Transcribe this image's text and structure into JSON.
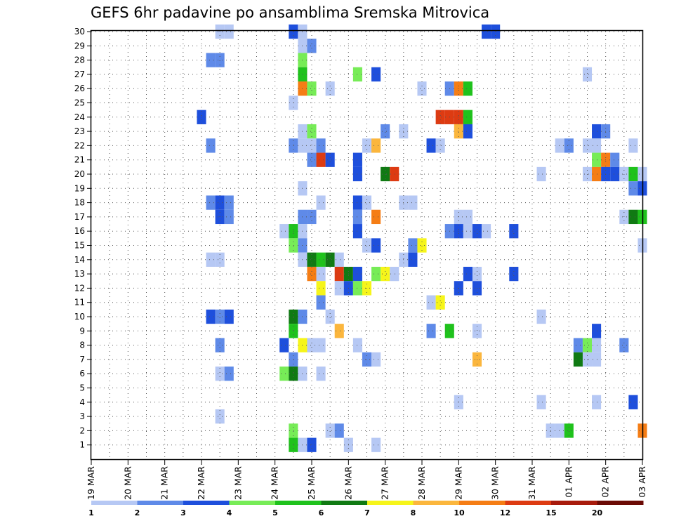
{
  "chart_data": {
    "type": "heatmap",
    "title": "GEFS 6hr padavine po ansamblima Sremska Mitrovica",
    "xlabel": "",
    "ylabel": "",
    "x_tick_labels": [
      "19 MAR",
      "20 MAR",
      "21 MAR",
      "22 MAR",
      "23 MAR",
      "24 MAR",
      "25 MAR",
      "26 MAR",
      "27 MAR",
      "28 MAR",
      "29 MAR",
      "30 MAR",
      "31 MAR",
      "01 APR",
      "02 APR",
      "03 APR"
    ],
    "x_range_days": [
      0,
      15
    ],
    "y_tick_labels": [
      "1",
      "2",
      "3",
      "4",
      "5",
      "6",
      "7",
      "8",
      "9",
      "10",
      "11",
      "12",
      "13",
      "14",
      "15",
      "16",
      "17",
      "18",
      "19",
      "20",
      "21",
      "22",
      "23",
      "24",
      "25",
      "26",
      "27",
      "28",
      "29",
      "30"
    ],
    "y_range": [
      0,
      30
    ],
    "grid": true,
    "colorbar": {
      "labels": [
        "1",
        "2",
        "3",
        "4",
        "5",
        "6",
        "7",
        "8",
        "10",
        "12",
        "15",
        "20"
      ],
      "colors": [
        "#b6c8f4",
        "#5f8ae8",
        "#1e4fdc",
        "#77ec57",
        "#1fc21c",
        "#107a13",
        "#f6f51a",
        "#fbb63d",
        "#f57d15",
        "#dd3b12",
        "#a81b0d",
        "#6b0a05"
      ]
    },
    "points_note": "x = days since 19 MAR 00Z (6-hour steps), y = ensemble member, c = precipitation class index into colorbar.colors",
    "points": [
      {
        "x": 3.5,
        "y": 30,
        "c": 0
      },
      {
        "x": 3.75,
        "y": 30,
        "c": 0
      },
      {
        "x": 5.5,
        "y": 30,
        "c": 2
      },
      {
        "x": 5.75,
        "y": 30,
        "c": 0
      },
      {
        "x": 10.75,
        "y": 30,
        "c": 2
      },
      {
        "x": 11.0,
        "y": 30,
        "c": 2
      },
      {
        "x": 5.75,
        "y": 29,
        "c": 0
      },
      {
        "x": 6.0,
        "y": 29,
        "c": 1
      },
      {
        "x": 3.25,
        "y": 28,
        "c": 1
      },
      {
        "x": 3.5,
        "y": 28,
        "c": 1
      },
      {
        "x": 5.75,
        "y": 28,
        "c": 3
      },
      {
        "x": 5.75,
        "y": 27,
        "c": 4
      },
      {
        "x": 7.25,
        "y": 27,
        "c": 3
      },
      {
        "x": 7.75,
        "y": 27,
        "c": 2
      },
      {
        "x": 13.5,
        "y": 27,
        "c": 0
      },
      {
        "x": 5.75,
        "y": 26,
        "c": 8
      },
      {
        "x": 6.0,
        "y": 26,
        "c": 3
      },
      {
        "x": 6.5,
        "y": 26,
        "c": 0
      },
      {
        "x": 9.0,
        "y": 26,
        "c": 0
      },
      {
        "x": 9.75,
        "y": 26,
        "c": 1
      },
      {
        "x": 10.0,
        "y": 26,
        "c": 8
      },
      {
        "x": 10.25,
        "y": 26,
        "c": 4
      },
      {
        "x": 5.5,
        "y": 25,
        "c": 0
      },
      {
        "x": 3.0,
        "y": 24,
        "c": 2
      },
      {
        "x": 9.5,
        "y": 24,
        "c": 9
      },
      {
        "x": 9.75,
        "y": 24,
        "c": 9
      },
      {
        "x": 10.0,
        "y": 24,
        "c": 9
      },
      {
        "x": 10.25,
        "y": 24,
        "c": 4
      },
      {
        "x": 5.75,
        "y": 23,
        "c": 0
      },
      {
        "x": 6.0,
        "y": 23,
        "c": 3
      },
      {
        "x": 8.0,
        "y": 23,
        "c": 1
      },
      {
        "x": 8.5,
        "y": 23,
        "c": 0
      },
      {
        "x": 10.0,
        "y": 23,
        "c": 7
      },
      {
        "x": 10.25,
        "y": 23,
        "c": 2
      },
      {
        "x": 13.75,
        "y": 23,
        "c": 2
      },
      {
        "x": 14.0,
        "y": 23,
        "c": 1
      },
      {
        "x": 3.25,
        "y": 22,
        "c": 1
      },
      {
        "x": 5.5,
        "y": 22,
        "c": 1
      },
      {
        "x": 5.75,
        "y": 22,
        "c": 0
      },
      {
        "x": 6.0,
        "y": 22,
        "c": 0
      },
      {
        "x": 6.25,
        "y": 22,
        "c": 1
      },
      {
        "x": 7.5,
        "y": 22,
        "c": 0
      },
      {
        "x": 7.75,
        "y": 22,
        "c": 7
      },
      {
        "x": 9.25,
        "y": 22,
        "c": 2
      },
      {
        "x": 9.5,
        "y": 22,
        "c": 0
      },
      {
        "x": 12.75,
        "y": 22,
        "c": 0
      },
      {
        "x": 13.0,
        "y": 22,
        "c": 1
      },
      {
        "x": 13.5,
        "y": 22,
        "c": 0
      },
      {
        "x": 13.75,
        "y": 22,
        "c": 0
      },
      {
        "x": 14.75,
        "y": 22,
        "c": 0
      },
      {
        "x": 6.0,
        "y": 21,
        "c": 1
      },
      {
        "x": 6.25,
        "y": 21,
        "c": 9
      },
      {
        "x": 6.5,
        "y": 21,
        "c": 2
      },
      {
        "x": 7.25,
        "y": 21,
        "c": 2
      },
      {
        "x": 13.75,
        "y": 21,
        "c": 3
      },
      {
        "x": 14.0,
        "y": 21,
        "c": 8
      },
      {
        "x": 14.25,
        "y": 21,
        "c": 1
      },
      {
        "x": 7.25,
        "y": 20,
        "c": 2
      },
      {
        "x": 8.0,
        "y": 20,
        "c": 5
      },
      {
        "x": 8.25,
        "y": 20,
        "c": 9
      },
      {
        "x": 12.25,
        "y": 20,
        "c": 0
      },
      {
        "x": 13.5,
        "y": 20,
        "c": 0
      },
      {
        "x": 13.75,
        "y": 20,
        "c": 8
      },
      {
        "x": 14.0,
        "y": 20,
        "c": 2
      },
      {
        "x": 14.25,
        "y": 20,
        "c": 2
      },
      {
        "x": 14.5,
        "y": 20,
        "c": 0
      },
      {
        "x": 14.75,
        "y": 20,
        "c": 4
      },
      {
        "x": 15.0,
        "y": 20,
        "c": 0
      },
      {
        "x": 5.75,
        "y": 19,
        "c": 0
      },
      {
        "x": 14.75,
        "y": 19,
        "c": 1
      },
      {
        "x": 15.0,
        "y": 19,
        "c": 2
      },
      {
        "x": 3.25,
        "y": 18,
        "c": 1
      },
      {
        "x": 3.5,
        "y": 18,
        "c": 2
      },
      {
        "x": 3.75,
        "y": 18,
        "c": 1
      },
      {
        "x": 6.25,
        "y": 18,
        "c": 0
      },
      {
        "x": 7.25,
        "y": 18,
        "c": 2
      },
      {
        "x": 7.5,
        "y": 18,
        "c": 0
      },
      {
        "x": 8.5,
        "y": 18,
        "c": 0
      },
      {
        "x": 8.75,
        "y": 18,
        "c": 0
      },
      {
        "x": 3.5,
        "y": 17,
        "c": 2
      },
      {
        "x": 3.75,
        "y": 17,
        "c": 1
      },
      {
        "x": 5.75,
        "y": 17,
        "c": 1
      },
      {
        "x": 6.0,
        "y": 17,
        "c": 1
      },
      {
        "x": 7.25,
        "y": 17,
        "c": 1
      },
      {
        "x": 7.75,
        "y": 17,
        "c": 8
      },
      {
        "x": 10.0,
        "y": 17,
        "c": 0
      },
      {
        "x": 10.25,
        "y": 17,
        "c": 0
      },
      {
        "x": 14.5,
        "y": 17,
        "c": 0
      },
      {
        "x": 14.75,
        "y": 17,
        "c": 5
      },
      {
        "x": 15.0,
        "y": 17,
        "c": 4
      },
      {
        "x": 5.25,
        "y": 16,
        "c": 0
      },
      {
        "x": 5.5,
        "y": 16,
        "c": 4
      },
      {
        "x": 5.75,
        "y": 16,
        "c": 0
      },
      {
        "x": 7.25,
        "y": 16,
        "c": 2
      },
      {
        "x": 9.75,
        "y": 16,
        "c": 1
      },
      {
        "x": 10.0,
        "y": 16,
        "c": 2
      },
      {
        "x": 10.25,
        "y": 16,
        "c": 0
      },
      {
        "x": 10.5,
        "y": 16,
        "c": 2
      },
      {
        "x": 10.75,
        "y": 16,
        "c": 0
      },
      {
        "x": 11.5,
        "y": 16,
        "c": 2
      },
      {
        "x": 5.5,
        "y": 15,
        "c": 3
      },
      {
        "x": 5.75,
        "y": 15,
        "c": 1
      },
      {
        "x": 7.5,
        "y": 15,
        "c": 0
      },
      {
        "x": 7.75,
        "y": 15,
        "c": 2
      },
      {
        "x": 8.75,
        "y": 15,
        "c": 1
      },
      {
        "x": 9.0,
        "y": 15,
        "c": 6
      },
      {
        "x": 15.0,
        "y": 15,
        "c": 0
      },
      {
        "x": 3.25,
        "y": 14,
        "c": 0
      },
      {
        "x": 3.5,
        "y": 14,
        "c": 0
      },
      {
        "x": 5.75,
        "y": 14,
        "c": 0
      },
      {
        "x": 6.0,
        "y": 14,
        "c": 5
      },
      {
        "x": 6.25,
        "y": 14,
        "c": 4
      },
      {
        "x": 6.5,
        "y": 14,
        "c": 5
      },
      {
        "x": 6.75,
        "y": 14,
        "c": 0
      },
      {
        "x": 8.5,
        "y": 14,
        "c": 0
      },
      {
        "x": 8.75,
        "y": 14,
        "c": 2
      },
      {
        "x": 6.0,
        "y": 13,
        "c": 8
      },
      {
        "x": 6.25,
        "y": 13,
        "c": 0
      },
      {
        "x": 6.75,
        "y": 13,
        "c": 9
      },
      {
        "x": 7.0,
        "y": 13,
        "c": 5
      },
      {
        "x": 7.25,
        "y": 13,
        "c": 2
      },
      {
        "x": 7.75,
        "y": 13,
        "c": 3
      },
      {
        "x": 8.0,
        "y": 13,
        "c": 6
      },
      {
        "x": 8.25,
        "y": 13,
        "c": 0
      },
      {
        "x": 10.25,
        "y": 13,
        "c": 2
      },
      {
        "x": 10.5,
        "y": 13,
        "c": 0
      },
      {
        "x": 11.5,
        "y": 13,
        "c": 2
      },
      {
        "x": 6.25,
        "y": 12,
        "c": 6
      },
      {
        "x": 6.75,
        "y": 12,
        "c": 0
      },
      {
        "x": 7.0,
        "y": 12,
        "c": 2
      },
      {
        "x": 7.25,
        "y": 12,
        "c": 3
      },
      {
        "x": 7.5,
        "y": 12,
        "c": 6
      },
      {
        "x": 10.0,
        "y": 12,
        "c": 2
      },
      {
        "x": 10.5,
        "y": 12,
        "c": 2
      },
      {
        "x": 6.25,
        "y": 11,
        "c": 1
      },
      {
        "x": 9.25,
        "y": 11,
        "c": 0
      },
      {
        "x": 9.5,
        "y": 11,
        "c": 6
      },
      {
        "x": 5.5,
        "y": 10,
        "c": 5
      },
      {
        "x": 5.75,
        "y": 10,
        "c": 1
      },
      {
        "x": 6.5,
        "y": 10,
        "c": 0
      },
      {
        "x": 3.25,
        "y": 10,
        "c": 2
      },
      {
        "x": 3.5,
        "y": 10,
        "c": 1
      },
      {
        "x": 3.75,
        "y": 10,
        "c": 2
      },
      {
        "x": 12.25,
        "y": 10,
        "c": 0
      },
      {
        "x": 5.5,
        "y": 9,
        "c": 4
      },
      {
        "x": 6.75,
        "y": 9,
        "c": 7
      },
      {
        "x": 9.25,
        "y": 9,
        "c": 1
      },
      {
        "x": 9.75,
        "y": 9,
        "c": 4
      },
      {
        "x": 10.5,
        "y": 9,
        "c": 0
      },
      {
        "x": 13.75,
        "y": 9,
        "c": 2
      },
      {
        "x": 3.5,
        "y": 8,
        "c": 1
      },
      {
        "x": 5.25,
        "y": 8,
        "c": 2
      },
      {
        "x": 5.75,
        "y": 8,
        "c": 6
      },
      {
        "x": 6.0,
        "y": 8,
        "c": 0
      },
      {
        "x": 6.25,
        "y": 8,
        "c": 0
      },
      {
        "x": 7.25,
        "y": 8,
        "c": 0
      },
      {
        "x": 13.25,
        "y": 8,
        "c": 1
      },
      {
        "x": 13.5,
        "y": 8,
        "c": 3
      },
      {
        "x": 13.75,
        "y": 8,
        "c": 0
      },
      {
        "x": 14.5,
        "y": 8,
        "c": 1
      },
      {
        "x": 5.5,
        "y": 7,
        "c": 1
      },
      {
        "x": 7.5,
        "y": 7,
        "c": 1
      },
      {
        "x": 7.75,
        "y": 7,
        "c": 0
      },
      {
        "x": 10.5,
        "y": 7,
        "c": 7
      },
      {
        "x": 13.25,
        "y": 7,
        "c": 5
      },
      {
        "x": 13.5,
        "y": 7,
        "c": 0
      },
      {
        "x": 13.75,
        "y": 7,
        "c": 0
      },
      {
        "x": 3.5,
        "y": 6,
        "c": 0
      },
      {
        "x": 3.75,
        "y": 6,
        "c": 1
      },
      {
        "x": 5.25,
        "y": 6,
        "c": 3
      },
      {
        "x": 5.5,
        "y": 6,
        "c": 5
      },
      {
        "x": 5.75,
        "y": 6,
        "c": 0
      },
      {
        "x": 6.25,
        "y": 6,
        "c": 0
      },
      {
        "x": 3.5,
        "y": 3,
        "c": 0
      },
      {
        "x": 10.0,
        "y": 4,
        "c": 0
      },
      {
        "x": 12.25,
        "y": 4,
        "c": 0
      },
      {
        "x": 13.75,
        "y": 4,
        "c": 0
      },
      {
        "x": 14.75,
        "y": 4,
        "c": 2
      },
      {
        "x": 5.5,
        "y": 2,
        "c": 3
      },
      {
        "x": 6.5,
        "y": 2,
        "c": 0
      },
      {
        "x": 6.75,
        "y": 2,
        "c": 1
      },
      {
        "x": 12.5,
        "y": 2,
        "c": 0
      },
      {
        "x": 12.75,
        "y": 2,
        "c": 0
      },
      {
        "x": 13.0,
        "y": 2,
        "c": 4
      },
      {
        "x": 15.0,
        "y": 2,
        "c": 8
      },
      {
        "x": 5.5,
        "y": 1,
        "c": 4
      },
      {
        "x": 5.75,
        "y": 1,
        "c": 0
      },
      {
        "x": 6.0,
        "y": 1,
        "c": 2
      },
      {
        "x": 7.0,
        "y": 1,
        "c": 0
      },
      {
        "x": 7.75,
        "y": 1,
        "c": 0
      }
    ]
  }
}
